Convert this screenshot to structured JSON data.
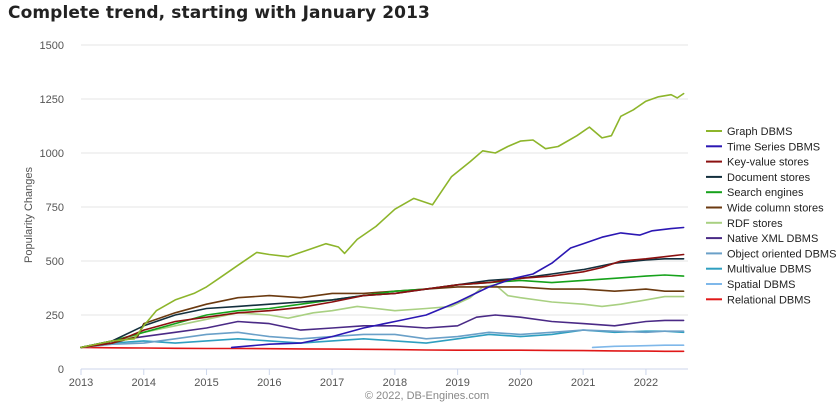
{
  "credit": "© 2022, DB-Engines.com",
  "chart_data": {
    "type": "line",
    "title": "Complete trend, starting with January 2013",
    "ylabel": "Popularity Changes",
    "xlabel": "",
    "xlim": [
      2013,
      2022.67
    ],
    "ylim": [
      0,
      1500
    ],
    "x_ticks": [
      "2013",
      "2014",
      "2015",
      "2016",
      "2017",
      "2018",
      "2019",
      "2020",
      "2021",
      "2022"
    ],
    "y_ticks": [
      "0",
      "250",
      "500",
      "750",
      "1000",
      "1250",
      "1500"
    ],
    "grid": "horizontal",
    "legend_position": "right",
    "series": [
      {
        "name": "Graph DBMS",
        "color": "#8db52b",
        "points": [
          [
            2013,
            100
          ],
          [
            2013.5,
            130
          ],
          [
            2013.85,
            140
          ],
          [
            2014,
            200
          ],
          [
            2014.2,
            270
          ],
          [
            2014.5,
            320
          ],
          [
            2014.8,
            350
          ],
          [
            2015,
            380
          ],
          [
            2015.2,
            420
          ],
          [
            2015.5,
            480
          ],
          [
            2015.8,
            540
          ],
          [
            2016,
            530
          ],
          [
            2016.3,
            520
          ],
          [
            2016.6,
            550
          ],
          [
            2016.9,
            580
          ],
          [
            2017.1,
            565
          ],
          [
            2017.2,
            535
          ],
          [
            2017.4,
            600
          ],
          [
            2017.7,
            660
          ],
          [
            2018,
            740
          ],
          [
            2018.3,
            790
          ],
          [
            2018.6,
            760
          ],
          [
            2018.9,
            890
          ],
          [
            2019.2,
            960
          ],
          [
            2019.4,
            1010
          ],
          [
            2019.6,
            1000
          ],
          [
            2019.8,
            1030
          ],
          [
            2020,
            1055
          ],
          [
            2020.2,
            1060
          ],
          [
            2020.4,
            1020
          ],
          [
            2020.6,
            1030
          ],
          [
            2020.9,
            1080
          ],
          [
            2021.1,
            1120
          ],
          [
            2021.3,
            1070
          ],
          [
            2021.45,
            1080
          ],
          [
            2021.6,
            1170
          ],
          [
            2021.8,
            1200
          ],
          [
            2022,
            1240
          ],
          [
            2022.2,
            1260
          ],
          [
            2022.4,
            1270
          ],
          [
            2022.5,
            1255
          ],
          [
            2022.6,
            1275
          ]
        ]
      },
      {
        "name": "Time Series DBMS",
        "color": "#2b17b3",
        "points": [
          [
            2015.4,
            100
          ],
          [
            2016,
            115
          ],
          [
            2016.5,
            120
          ],
          [
            2017,
            150
          ],
          [
            2017.5,
            190
          ],
          [
            2018,
            220
          ],
          [
            2018.5,
            250
          ],
          [
            2019,
            310
          ],
          [
            2019.5,
            380
          ],
          [
            2019.9,
            420
          ],
          [
            2020.2,
            440
          ],
          [
            2020.5,
            490
          ],
          [
            2020.8,
            560
          ],
          [
            2021,
            580
          ],
          [
            2021.3,
            610
          ],
          [
            2021.6,
            630
          ],
          [
            2021.9,
            620
          ],
          [
            2022.1,
            640
          ],
          [
            2022.4,
            650
          ],
          [
            2022.6,
            655
          ]
        ]
      },
      {
        "name": "Key-value stores",
        "color": "#8b1010",
        "points": [
          [
            2013,
            100
          ],
          [
            2013.5,
            120
          ],
          [
            2014,
            180
          ],
          [
            2014.5,
            220
          ],
          [
            2015,
            240
          ],
          [
            2015.5,
            260
          ],
          [
            2016,
            270
          ],
          [
            2016.5,
            285
          ],
          [
            2017,
            310
          ],
          [
            2017.5,
            340
          ],
          [
            2018,
            350
          ],
          [
            2018.5,
            370
          ],
          [
            2019,
            390
          ],
          [
            2019.5,
            400
          ],
          [
            2020,
            420
          ],
          [
            2020.5,
            430
          ],
          [
            2021,
            450
          ],
          [
            2021.3,
            470
          ],
          [
            2021.6,
            500
          ],
          [
            2022,
            510
          ],
          [
            2022.3,
            520
          ],
          [
            2022.6,
            530
          ]
        ]
      },
      {
        "name": "Document stores",
        "color": "#132f3d",
        "points": [
          [
            2013,
            100
          ],
          [
            2013.5,
            130
          ],
          [
            2014,
            200
          ],
          [
            2014.5,
            250
          ],
          [
            2015,
            280
          ],
          [
            2015.5,
            290
          ],
          [
            2016,
            300
          ],
          [
            2016.5,
            310
          ],
          [
            2017,
            320
          ],
          [
            2017.5,
            340
          ],
          [
            2018,
            350
          ],
          [
            2018.5,
            370
          ],
          [
            2019,
            390
          ],
          [
            2019.5,
            410
          ],
          [
            2020,
            420
          ],
          [
            2020.5,
            440
          ],
          [
            2021,
            460
          ],
          [
            2021.5,
            490
          ],
          [
            2022,
            505
          ],
          [
            2022.3,
            510
          ],
          [
            2022.6,
            510
          ]
        ]
      },
      {
        "name": "Search engines",
        "color": "#16a21b",
        "points": [
          [
            2013,
            100
          ],
          [
            2013.5,
            130
          ],
          [
            2014,
            170
          ],
          [
            2014.5,
            210
          ],
          [
            2015,
            250
          ],
          [
            2015.5,
            270
          ],
          [
            2016,
            280
          ],
          [
            2016.5,
            300
          ],
          [
            2017,
            320
          ],
          [
            2017.5,
            340
          ],
          [
            2018,
            360
          ],
          [
            2018.5,
            370
          ],
          [
            2019,
            390
          ],
          [
            2019.5,
            400
          ],
          [
            2020,
            410
          ],
          [
            2020.5,
            400
          ],
          [
            2021,
            410
          ],
          [
            2021.5,
            420
          ],
          [
            2022,
            430
          ],
          [
            2022.3,
            435
          ],
          [
            2022.6,
            430
          ]
        ]
      },
      {
        "name": "Wide column stores",
        "color": "#6b3a10",
        "points": [
          [
            2013,
            100
          ],
          [
            2013.5,
            120
          ],
          [
            2013.9,
            150
          ],
          [
            2014,
            210
          ],
          [
            2014.5,
            260
          ],
          [
            2015,
            300
          ],
          [
            2015.5,
            330
          ],
          [
            2016,
            340
          ],
          [
            2016.5,
            330
          ],
          [
            2017,
            350
          ],
          [
            2017.5,
            350
          ],
          [
            2018,
            360
          ],
          [
            2018.5,
            370
          ],
          [
            2019,
            380
          ],
          [
            2019.5,
            380
          ],
          [
            2020,
            380
          ],
          [
            2020.5,
            370
          ],
          [
            2021,
            370
          ],
          [
            2021.5,
            360
          ],
          [
            2022,
            370
          ],
          [
            2022.3,
            360
          ],
          [
            2022.6,
            360
          ]
        ]
      },
      {
        "name": "RDF stores",
        "color": "#a9d082",
        "points": [
          [
            2013,
            100
          ],
          [
            2013.5,
            120
          ],
          [
            2014,
            170
          ],
          [
            2014.5,
            200
          ],
          [
            2015,
            230
          ],
          [
            2015.5,
            260
          ],
          [
            2016,
            250
          ],
          [
            2016.3,
            235
          ],
          [
            2016.7,
            260
          ],
          [
            2017,
            270
          ],
          [
            2017.4,
            290
          ],
          [
            2017.7,
            280
          ],
          [
            2018,
            270
          ],
          [
            2018.5,
            280
          ],
          [
            2018.9,
            290
          ],
          [
            2019.2,
            330
          ],
          [
            2019.4,
            380
          ],
          [
            2019.6,
            390
          ],
          [
            2019.8,
            340
          ],
          [
            2020,
            330
          ],
          [
            2020.5,
            310
          ],
          [
            2021,
            300
          ],
          [
            2021.3,
            290
          ],
          [
            2021.6,
            300
          ],
          [
            2022,
            320
          ],
          [
            2022.3,
            335
          ],
          [
            2022.6,
            335
          ]
        ]
      },
      {
        "name": "Native XML DBMS",
        "color": "#4a2a86",
        "points": [
          [
            2013,
            100
          ],
          [
            2013.5,
            130
          ],
          [
            2014,
            150
          ],
          [
            2014.5,
            170
          ],
          [
            2015,
            190
          ],
          [
            2015.5,
            220
          ],
          [
            2016,
            210
          ],
          [
            2016.5,
            180
          ],
          [
            2017,
            190
          ],
          [
            2017.5,
            200
          ],
          [
            2018,
            200
          ],
          [
            2018.5,
            190
          ],
          [
            2019,
            200
          ],
          [
            2019.3,
            240
          ],
          [
            2019.6,
            250
          ],
          [
            2020,
            240
          ],
          [
            2020.5,
            220
          ],
          [
            2021,
            210
          ],
          [
            2021.5,
            200
          ],
          [
            2022,
            220
          ],
          [
            2022.3,
            225
          ],
          [
            2022.6,
            225
          ]
        ]
      },
      {
        "name": "Object oriented DBMS",
        "color": "#6aa0c8",
        "points": [
          [
            2013,
            100
          ],
          [
            2013.5,
            115
          ],
          [
            2014,
            120
          ],
          [
            2014.5,
            140
          ],
          [
            2015,
            160
          ],
          [
            2015.5,
            170
          ],
          [
            2016,
            150
          ],
          [
            2016.5,
            140
          ],
          [
            2017,
            150
          ],
          [
            2017.5,
            160
          ],
          [
            2018,
            160
          ],
          [
            2018.5,
            140
          ],
          [
            2019,
            150
          ],
          [
            2019.5,
            170
          ],
          [
            2020,
            160
          ],
          [
            2020.5,
            170
          ],
          [
            2021,
            180
          ],
          [
            2021.5,
            175
          ],
          [
            2022,
            170
          ],
          [
            2022.3,
            175
          ],
          [
            2022.6,
            175
          ]
        ]
      },
      {
        "name": "Multivalue DBMS",
        "color": "#2f9fc0",
        "points": [
          [
            2013,
            100
          ],
          [
            2013.5,
            120
          ],
          [
            2014,
            130
          ],
          [
            2014.5,
            120
          ],
          [
            2015,
            130
          ],
          [
            2015.5,
            140
          ],
          [
            2016,
            130
          ],
          [
            2016.5,
            120
          ],
          [
            2017,
            130
          ],
          [
            2017.5,
            140
          ],
          [
            2018,
            130
          ],
          [
            2018.5,
            120
          ],
          [
            2019,
            140
          ],
          [
            2019.5,
            160
          ],
          [
            2020,
            150
          ],
          [
            2020.5,
            160
          ],
          [
            2021,
            180
          ],
          [
            2021.5,
            170
          ],
          [
            2022,
            175
          ],
          [
            2022.3,
            175
          ],
          [
            2022.6,
            170
          ]
        ]
      },
      {
        "name": "Spatial DBMS",
        "color": "#7fb8ea",
        "points": [
          [
            2021.15,
            100
          ],
          [
            2021.5,
            105
          ],
          [
            2022,
            108
          ],
          [
            2022.3,
            110
          ],
          [
            2022.6,
            110
          ]
        ]
      },
      {
        "name": "Relational DBMS",
        "color": "#e01818",
        "points": [
          [
            2013,
            100
          ],
          [
            2013.5,
            98
          ],
          [
            2014,
            97
          ],
          [
            2014.5,
            96
          ],
          [
            2015,
            95
          ],
          [
            2015.5,
            95
          ],
          [
            2016,
            94
          ],
          [
            2016.5,
            93
          ],
          [
            2017,
            92
          ],
          [
            2017.5,
            91
          ],
          [
            2018,
            90
          ],
          [
            2018.5,
            88
          ],
          [
            2019,
            87
          ],
          [
            2019.5,
            87
          ],
          [
            2020,
            87
          ],
          [
            2020.5,
            86
          ],
          [
            2021,
            85
          ],
          [
            2021.5,
            84
          ],
          [
            2022,
            83
          ],
          [
            2022.3,
            82
          ],
          [
            2022.6,
            82
          ]
        ]
      }
    ]
  }
}
